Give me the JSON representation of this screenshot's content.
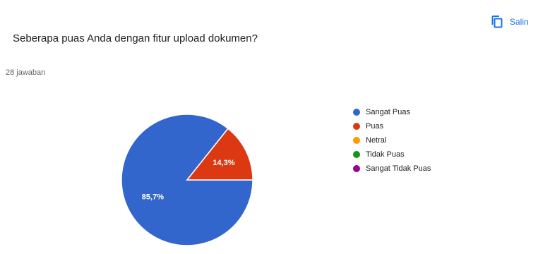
{
  "question": "Seberapa puas Anda dengan fitur upload dokumen?",
  "response_count": "28 jawaban",
  "copy_button": {
    "label": "Salin",
    "icon": "copy-icon"
  },
  "chart_data": {
    "type": "pie",
    "title": "",
    "series": [
      {
        "name": "Sangat Puas",
        "value": 85.7,
        "label": "85,7%",
        "color": "#3366cc"
      },
      {
        "name": "Puas",
        "value": 14.3,
        "label": "14,3%",
        "color": "#dc3912"
      },
      {
        "name": "Netral",
        "value": 0,
        "label": "",
        "color": "#ff9900"
      },
      {
        "name": "Tidak Puas",
        "value": 0,
        "label": "",
        "color": "#109618"
      },
      {
        "name": "Sangat Tidak Puas",
        "value": 0,
        "label": "",
        "color": "#990099"
      }
    ],
    "legend": "right"
  }
}
